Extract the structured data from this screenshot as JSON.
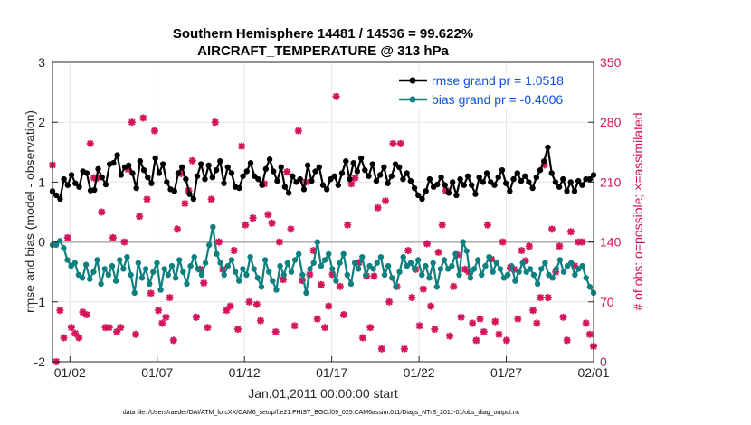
{
  "chart_data": {
    "type": "line",
    "title_line1": "Southern Hemisphere 14481 / 14536 = 99.622%",
    "title_line2": "AIRCRAFT_TEMPERATURE @ 313 hPa",
    "xlabel": "Jan.01,2011 00:00:00 start",
    "ylabel_left": "rmse and bias (model - observation)",
    "ylabel_right": "# of obs: o=possible; ×=assimilated",
    "xlim": [
      1,
      32
    ],
    "ylim_left": [
      -2,
      3
    ],
    "ylim_right": [
      0,
      350
    ],
    "x_tick_values": [
      2,
      7,
      12,
      17,
      22,
      27,
      32
    ],
    "x_tick_labels": [
      "01/02",
      "01/07",
      "01/12",
      "01/17",
      "01/22",
      "01/27",
      "02/01"
    ],
    "y_left_ticks": [
      "-2",
      "-1",
      "0",
      "1",
      "2",
      "3"
    ],
    "y_right_ticks": [
      "0",
      "70",
      "140",
      "210",
      "280",
      "350"
    ],
    "grid": true,
    "zero_line": true,
    "legend_position": "top-right",
    "colors": {
      "rmse": "#000000",
      "bias": "#0f8080",
      "obs": "#d4145a",
      "legend_text": "#0a4fe0"
    },
    "series": [
      {
        "name": "rmse grand pr = 1.0518",
        "key": "rmse",
        "values": [
          0.85,
          0.78,
          0.72,
          1.05,
          0.95,
          1.12,
          0.98,
          0.92,
          1.18,
          1.15,
          0.86,
          0.87,
          1.22,
          1.08,
          0.96,
          1.3,
          1.32,
          1.45,
          1.12,
          1.25,
          1.28,
          1.15,
          0.9,
          1.35,
          1.2,
          1.08,
          0.98,
          1.4,
          1.15,
          1.3,
          1.0,
          0.88,
          0.85,
          1.15,
          1.25,
          1.05,
          0.8,
          0.72,
          1.1,
          1.3,
          1.05,
          1.28,
          1.08,
          1.2,
          1.35,
          0.98,
          1.25,
          1.15,
          0.92,
          0.9,
          1.1,
          1.18,
          1.32,
          1.1,
          1.05,
          0.95,
          1.22,
          1.38,
          1.18,
          1.02,
          1.25,
          0.92,
          0.82,
          1.1,
          1.0,
          1.05,
          0.88,
          1.28,
          1.02,
          1.18,
          1.25,
          0.95,
          0.88,
          1.05,
          1.1,
          0.95,
          1.15,
          1.35,
          1.05,
          1.32,
          1.18,
          1.4,
          1.2,
          1.1,
          1.3,
          1.02,
          1.12,
          1.25,
          0.98,
          1.1,
          1.3,
          1.25,
          1.05,
          1.15,
          1.02,
          0.9,
          0.78,
          0.72,
          0.85,
          1.05,
          0.92,
          0.96,
          1.08,
          0.95,
          0.82,
          1.0,
          0.78,
          1.05,
          0.95,
          1.1,
          0.95,
          0.8,
          1.08,
          1.0,
          1.15,
          1.0,
          0.95,
          1.08,
          1.2,
          0.98,
          0.85,
          1.05,
          1.15,
          1.02,
          1.1,
          1.0,
          0.9,
          1.08,
          1.2,
          1.35,
          1.58,
          1.15,
          1.0,
          0.92,
          1.05,
          0.85,
          1.0,
          0.85,
          1.02,
          0.95,
          1.05,
          1.05,
          1.12
        ]
      },
      {
        "name": "bias grand pr = -0.4006",
        "key": "bias",
        "values": [
          -0.05,
          -0.05,
          0.02,
          -0.1,
          -0.3,
          -0.4,
          -0.35,
          -0.55,
          -0.6,
          -0.38,
          -0.62,
          -0.5,
          -0.3,
          -0.7,
          -0.45,
          -0.55,
          -0.4,
          -0.65,
          -0.3,
          -0.45,
          -0.25,
          -0.55,
          -0.85,
          -0.35,
          -0.6,
          -0.45,
          -0.7,
          -0.5,
          -0.35,
          -0.8,
          -0.45,
          -0.55,
          -0.4,
          -0.6,
          -0.3,
          -0.5,
          -0.7,
          -0.4,
          -0.25,
          -0.45,
          -0.55,
          -0.35,
          -0.05,
          0.25,
          -0.2,
          -0.35,
          -0.55,
          -0.4,
          -0.3,
          -0.5,
          -0.65,
          -0.45,
          -0.55,
          -0.25,
          -0.45,
          -0.6,
          -0.75,
          -0.3,
          -0.5,
          -0.65,
          -0.8,
          -0.4,
          -0.55,
          -0.35,
          -0.5,
          -0.3,
          -0.2,
          -0.55,
          -0.85,
          -0.45,
          -0.35,
          0.0,
          -0.4,
          -0.3,
          -0.2,
          -0.45,
          -0.65,
          -0.35,
          -0.2,
          -0.55,
          -0.7,
          -0.35,
          -0.45,
          -0.25,
          -0.55,
          -0.4,
          -0.45,
          -0.35,
          -0.25,
          -0.55,
          -0.4,
          -0.6,
          -0.75,
          -0.5,
          -0.25,
          -0.4,
          -0.35,
          -0.45,
          -0.3,
          -0.55,
          -0.4,
          -0.6,
          -0.35,
          -0.75,
          -0.45,
          -0.3,
          -0.45,
          -0.4,
          -0.2,
          -0.55,
          0.0,
          -0.15,
          -0.6,
          -0.45,
          -0.3,
          -0.55,
          -0.4,
          -0.25,
          -0.5,
          -0.35,
          -0.45,
          -0.6,
          -0.55,
          -0.4,
          -0.65,
          -0.5,
          -0.35,
          -0.5,
          -0.45,
          -0.55,
          -0.7,
          -0.45,
          -0.35,
          -0.55,
          -0.6,
          -0.45,
          -0.3,
          -0.5,
          -0.4,
          -0.35,
          -0.55,
          -0.45,
          -0.4,
          -0.6,
          -0.75,
          -0.85
        ]
      },
      {
        "name": "obs",
        "key": "obs",
        "values": [
          230,
          0,
          60,
          28,
          145,
          40,
          33,
          28,
          58,
          55,
          255,
          215,
          215,
          175,
          40,
          40,
          145,
          35,
          40,
          140,
          225,
          280,
          32,
          170,
          285,
          190,
          80,
          270,
          60,
          45,
          52,
          75,
          25,
          155,
          220,
          185,
          200,
          235,
          52,
          108,
          92,
          40,
          190,
          280,
          140,
          108,
          60,
          65,
          130,
          38,
          252,
          160,
          70,
          168,
          67,
          48,
          208,
          172,
          162,
          35,
          140,
          96,
          222,
          155,
          42,
          270,
          95,
          210,
          102,
          130,
          50,
          90,
          40,
          65,
          102,
          310,
          88,
          55,
          160,
          208,
          215,
          116,
          28,
          100,
          40,
          100,
          180,
          15,
          188,
          70,
          255,
          88,
          255,
          15,
          130,
          75,
          108,
          42,
          85,
          138,
          65,
          38,
          128,
          160,
          200,
          30,
          88,
          125,
          52,
          108,
          105,
          45,
          25,
          50,
          35,
          160,
          120,
          47,
          32,
          140,
          25,
          110,
          108,
          50,
          130,
          118,
          135,
          60,
          45,
          75,
          230,
          75,
          155,
          105,
          135,
          52,
          25,
          152,
          112,
          140,
          140,
          45,
          32,
          18
        ]
      }
    ]
  },
  "footer": "data file: /Users/raeder/DAI/ATM_forcXX/CAM6_setup/f.e21.FHIST_BGC.f09_025.CAM6assim.011/Diags_NTrS_2011-01/obs_diag_output.nc"
}
